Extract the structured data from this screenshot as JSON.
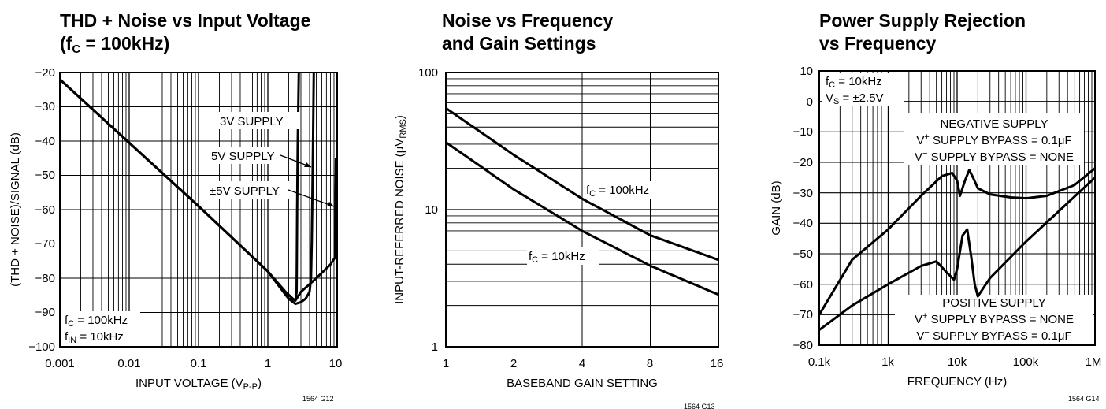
{
  "charts": {
    "thd": {
      "title_line1": "THD + Noise vs Input Voltage",
      "title_line2_pre": "(f",
      "title_line2_sub": "C",
      "title_line2_post": " = 100kHz)",
      "xlabel_pre": "INPUT VOLTAGE (V",
      "xlabel_sub": "P-P",
      "xlabel_post": ")",
      "ylabel": "(THD + NOISE)/SIGNAL (dB)",
      "xticks": [
        "0.001",
        "0.01",
        "0.1",
        "1",
        "10"
      ],
      "yticks": [
        "−20",
        "−30",
        "−40",
        "−50",
        "−60",
        "−70",
        "−80",
        "−90",
        "−100"
      ],
      "label_3v": "3V SUPPLY",
      "label_5v": "5V SUPPLY",
      "label_pm5v": "±5V SUPPLY",
      "cond1_pre": "f",
      "cond1_sub": "C",
      "cond1_post": " = 100kHz",
      "cond2_pre": "f",
      "cond2_sub": "IN",
      "cond2_post": " = 10kHz",
      "code": "1564 G12"
    },
    "noise": {
      "title_line1": "Noise vs Frequency",
      "title_line2": "and Gain Settings",
      "xlabel": "BASEBAND GAIN SETTING",
      "ylabel_pre": "INPUT-REFERRED NOISE (μV",
      "ylabel_sub": "RMS",
      "ylabel_post": ")",
      "xticks": [
        "1",
        "2",
        "4",
        "8",
        "16"
      ],
      "yticks": [
        "100",
        "10",
        "1"
      ],
      "label_100k_pre": "f",
      "label_100k_sub": "C",
      "label_100k_post": " = 100kHz",
      "label_10k_pre": "f",
      "label_10k_sub": "C",
      "label_10k_post": " = 10kHz",
      "code": "1564 G13"
    },
    "psr": {
      "title_line1": "Power Supply Rejection",
      "title_line2": "vs Frequency",
      "xlabel": "FREQUENCY (Hz)",
      "ylabel": "GAIN (dB)",
      "xticks": [
        "0.1k",
        "1k",
        "10k",
        "100k",
        "1M"
      ],
      "yticks": [
        "10",
        "0",
        "−10",
        "−20",
        "−30",
        "−40",
        "−50",
        "−60",
        "−70",
        "−80"
      ],
      "cond1_pre": "f",
      "cond1_sub": "C",
      "cond1_post": " = 10kHz",
      "cond2_pre": "V",
      "cond2_sub": "S",
      "cond2_post": " = ±2.5V",
      "neg_title": "NEGATIVE SUPPLY",
      "neg_l1_pre": "V",
      "neg_l1_sup": "+",
      "neg_l1_post": " SUPPLY BYPASS = 0.1μF",
      "neg_l2_pre": "V",
      "neg_l2_sup": "−",
      "neg_l2_post": " SUPPLY BYPASS = NONE",
      "pos_title": "POSITIVE SUPPLY",
      "pos_l1_pre": "V",
      "pos_l1_sup": "+",
      "pos_l1_post": " SUPPLY BYPASS = NONE",
      "pos_l2_pre": "V",
      "pos_l2_sup": "−",
      "pos_l2_post": " SUPPLY BYPASS = 0.1μF",
      "code": "1564 G14"
    }
  },
  "chart_data": [
    {
      "type": "line",
      "x_scale": "log",
      "xlim": [
        0.001,
        10
      ],
      "ylim": [
        -100,
        -20
      ],
      "grid": true,
      "series": [
        {
          "name": "3V SUPPLY",
          "x": [
            0.001,
            0.01,
            0.1,
            1,
            1.8,
            2.3,
            2.5,
            2.6,
            2.62,
            2.65,
            2.7,
            2.8
          ],
          "y": [
            -22,
            -40.5,
            -59,
            -78,
            -84,
            -86,
            -86.5,
            -84,
            -75,
            -60,
            -40,
            -20
          ]
        },
        {
          "name": "5V SUPPLY",
          "x": [
            0.001,
            0.01,
            0.1,
            1,
            2,
            2.5,
            3,
            3.5,
            4,
            4.2,
            4.3,
            4.4,
            4.5,
            4.6
          ],
          "y": [
            -22,
            -40.5,
            -59,
            -78,
            -86,
            -87.5,
            -87,
            -86,
            -84,
            -80,
            -70,
            -55,
            -38,
            -20
          ]
        },
        {
          "name": "±5V SUPPLY",
          "x": [
            0.001,
            0.01,
            0.1,
            1,
            2,
            2.5,
            3,
            5,
            8,
            9.3,
            9.4,
            9.5,
            9.6
          ],
          "y": [
            -22,
            -40.5,
            -59,
            -78,
            -86,
            -86.5,
            -84,
            -80,
            -76,
            -74,
            -65,
            -55,
            -45
          ]
        }
      ]
    },
    {
      "type": "line",
      "x_scale": "log",
      "y_scale": "log",
      "xlim": [
        1,
        16
      ],
      "ylim": [
        1,
        100
      ],
      "grid": true,
      "series": [
        {
          "name": "fC = 100kHz",
          "x": [
            1,
            2,
            4,
            8,
            16
          ],
          "y": [
            55,
            25,
            12,
            6.5,
            4.3
          ]
        },
        {
          "name": "fC = 10kHz",
          "x": [
            1,
            2,
            4,
            8,
            16
          ],
          "y": [
            31,
            14,
            7,
            3.9,
            2.4
          ]
        }
      ]
    },
    {
      "type": "line",
      "x_scale": "log",
      "xlim": [
        100,
        1000000
      ],
      "ylim": [
        -80,
        10
      ],
      "grid": true,
      "series": [
        {
          "name": "NEGATIVE SUPPLY",
          "x": [
            100,
            300,
            1000,
            3000,
            6000,
            8500,
            10000,
            11000,
            13000,
            15000,
            17000,
            20000,
            30000,
            60000,
            100000,
            200000,
            500000,
            1000000
          ],
          "y": [
            -70,
            -52,
            -42,
            -31,
            -24.5,
            -23.5,
            -26,
            -31,
            -26,
            -22.5,
            -25,
            -28.5,
            -30.5,
            -31.5,
            -31.8,
            -31,
            -27.5,
            -22
          ]
        },
        {
          "name": "POSITIVE SUPPLY",
          "x": [
            100,
            300,
            1000,
            3000,
            5000,
            7000,
            9000,
            10000,
            12000,
            14000,
            16000,
            18000,
            20000,
            30000,
            100000,
            300000,
            1000000
          ],
          "y": [
            -75,
            -67,
            -60,
            -54,
            -52.5,
            -56,
            -58.5,
            -55,
            -44,
            -42,
            -51,
            -60,
            -64,
            -58,
            -46,
            -36,
            -25
          ]
        }
      ]
    }
  ]
}
